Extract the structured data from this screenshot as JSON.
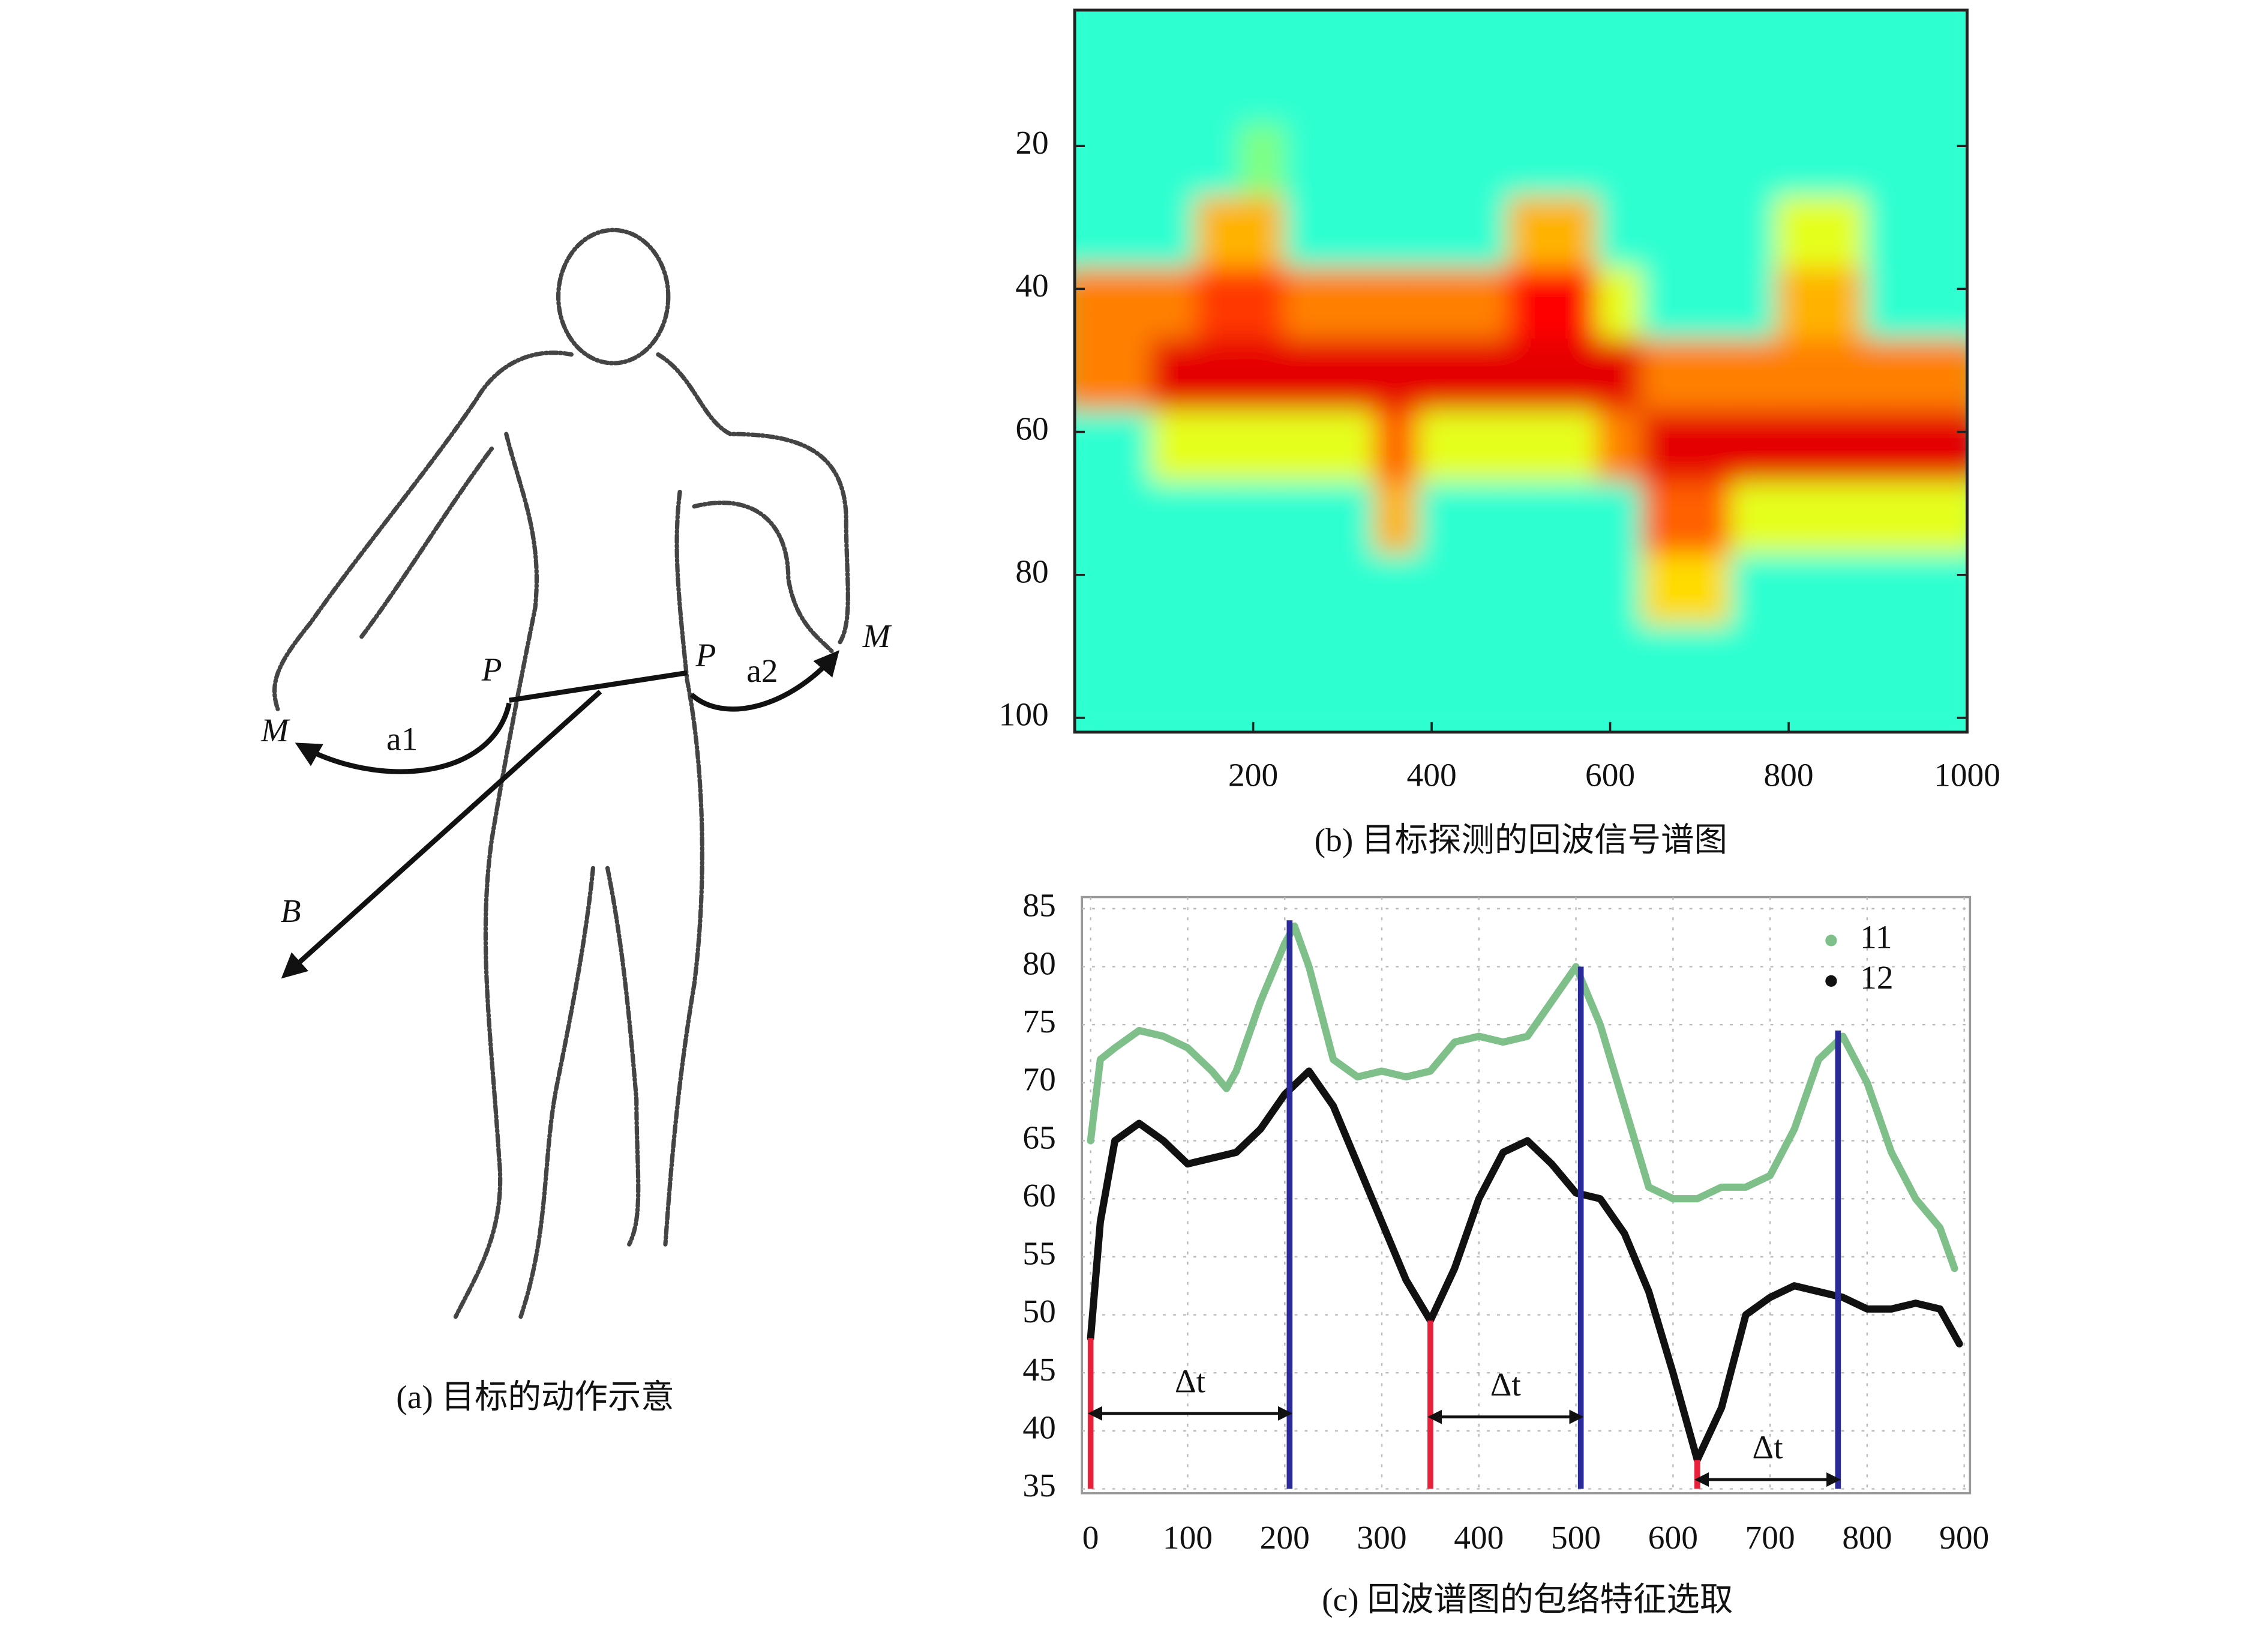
{
  "diagram": {
    "caption": "(a) 目标的动作示意",
    "labels": [
      "M",
      "a1",
      "P",
      "P",
      "a2",
      "M",
      "B"
    ]
  },
  "chart_data": [
    {
      "type": "heatmap",
      "caption": "(b) 目标探测的回波信号谱图",
      "colormap": "jet",
      "xlim": [
        0,
        1000
      ],
      "ylim": [
        102,
        1
      ],
      "xticks": [
        200,
        400,
        600,
        800,
        1000
      ],
      "yticks": [
        20,
        40,
        60,
        80,
        100
      ],
      "x": [
        25,
        75,
        125,
        175,
        225,
        275,
        325,
        375,
        425,
        475,
        525,
        575,
        625,
        675,
        725,
        775,
        825,
        875,
        925,
        975
      ],
      "y": [
        5,
        15,
        25,
        35,
        45,
        55,
        65,
        75,
        85,
        95
      ],
      "z": [
        [
          0.42,
          0.42,
          0.42,
          0.42,
          0.42,
          0.42,
          0.42,
          0.42,
          0.42,
          0.42,
          0.42,
          0.42,
          0.42,
          0.42,
          0.42,
          0.42,
          0.42,
          0.42,
          0.42,
          0.42
        ],
        [
          0.42,
          0.42,
          0.42,
          0.42,
          0.42,
          0.42,
          0.42,
          0.42,
          0.42,
          0.42,
          0.42,
          0.42,
          0.42,
          0.42,
          0.42,
          0.42,
          0.42,
          0.42,
          0.42,
          0.42
        ],
        [
          0.42,
          0.42,
          0.42,
          0.42,
          0.5,
          0.42,
          0.42,
          0.42,
          0.42,
          0.42,
          0.42,
          0.42,
          0.42,
          0.42,
          0.42,
          0.42,
          0.42,
          0.42,
          0.42,
          0.42
        ],
        [
          0.42,
          0.42,
          0.42,
          0.7,
          0.7,
          0.42,
          0.42,
          0.42,
          0.42,
          0.42,
          0.7,
          0.7,
          0.42,
          0.42,
          0.42,
          0.42,
          0.6,
          0.6,
          0.42,
          0.42
        ],
        [
          0.75,
          0.75,
          0.75,
          0.82,
          0.82,
          0.75,
          0.75,
          0.75,
          0.75,
          0.75,
          0.87,
          0.87,
          0.6,
          0.42,
          0.42,
          0.42,
          0.7,
          0.7,
          0.42,
          0.42
        ],
        [
          0.75,
          0.75,
          0.9,
          0.9,
          0.9,
          0.9,
          0.9,
          0.9,
          0.9,
          0.9,
          0.9,
          0.9,
          0.9,
          0.75,
          0.75,
          0.75,
          0.75,
          0.75,
          0.75,
          0.75
        ],
        [
          0.42,
          0.42,
          0.6,
          0.6,
          0.6,
          0.6,
          0.6,
          0.78,
          0.6,
          0.6,
          0.6,
          0.6,
          0.75,
          0.9,
          0.9,
          0.9,
          0.9,
          0.9,
          0.9,
          0.9
        ],
        [
          0.42,
          0.42,
          0.42,
          0.42,
          0.42,
          0.42,
          0.42,
          0.7,
          0.42,
          0.42,
          0.42,
          0.42,
          0.42,
          0.78,
          0.78,
          0.6,
          0.6,
          0.6,
          0.6,
          0.6
        ],
        [
          0.42,
          0.42,
          0.42,
          0.42,
          0.42,
          0.42,
          0.42,
          0.42,
          0.42,
          0.42,
          0.42,
          0.42,
          0.42,
          0.66,
          0.66,
          0.42,
          0.42,
          0.42,
          0.42,
          0.42
        ],
        [
          0.42,
          0.42,
          0.42,
          0.42,
          0.42,
          0.42,
          0.42,
          0.42,
          0.42,
          0.42,
          0.42,
          0.42,
          0.42,
          0.42,
          0.42,
          0.42,
          0.42,
          0.42,
          0.42,
          0.42
        ]
      ]
    },
    {
      "type": "line",
      "caption": "(c) 回波谱图的包络特征选取",
      "xlim": [
        0,
        900
      ],
      "ylim": [
        35,
        85
      ],
      "xticks": [
        0,
        100,
        200,
        300,
        400,
        500,
        600,
        700,
        800,
        900
      ],
      "yticks": [
        35,
        40,
        45,
        50,
        55,
        60,
        65,
        70,
        75,
        80,
        85
      ],
      "grid": true,
      "legend": "upper right",
      "series": [
        {
          "name": "11",
          "color": "#7fbf8a",
          "x": [
            0,
            10,
            25,
            50,
            75,
            100,
            125,
            140,
            150,
            175,
            200,
            210,
            225,
            250,
            275,
            300,
            325,
            350,
            375,
            400,
            425,
            450,
            475,
            500,
            525,
            550,
            575,
            600,
            625,
            650,
            675,
            700,
            725,
            750,
            775,
            800,
            825,
            850,
            875,
            890
          ],
          "values": [
            65,
            72,
            73,
            74.5,
            74,
            73,
            71,
            69.5,
            71,
            77,
            82,
            83.5,
            80,
            72,
            70.5,
            71,
            70.5,
            71,
            73.5,
            74,
            73.5,
            74,
            77,
            80,
            75,
            68,
            61,
            60,
            60,
            61,
            61,
            62,
            66,
            72,
            74,
            70,
            64,
            60,
            57.5,
            54
          ]
        },
        {
          "name": "12",
          "color": "#111111",
          "x": [
            0,
            10,
            25,
            50,
            75,
            100,
            125,
            150,
            175,
            200,
            225,
            250,
            275,
            300,
            325,
            350,
            375,
            400,
            425,
            450,
            475,
            500,
            525,
            550,
            575,
            600,
            625,
            650,
            675,
            700,
            725,
            750,
            775,
            800,
            825,
            850,
            875,
            895
          ],
          "values": [
            48,
            58,
            65,
            66.5,
            65,
            63,
            63.5,
            64,
            66,
            69,
            71,
            68,
            63,
            58,
            53,
            49.5,
            54,
            60,
            64,
            65,
            63,
            60.5,
            60,
            57,
            52,
            45,
            37.5,
            42,
            50,
            51.5,
            52.5,
            52,
            51.5,
            50.5,
            50.5,
            51,
            50.5,
            47.5
          ]
        }
      ],
      "vlines": [
        {
          "x": 0,
          "y": 48,
          "color": "#e8203a"
        },
        {
          "x": 350,
          "y": 49.5,
          "color": "#e8203a"
        },
        {
          "x": 625,
          "y": 37.5,
          "color": "#e8203a"
        },
        {
          "x": 205,
          "y": 84,
          "color": "#2a2a9a"
        },
        {
          "x": 505,
          "y": 80,
          "color": "#2a2a9a"
        },
        {
          "x": 770,
          "y": 74.5,
          "color": "#2a2a9a"
        }
      ],
      "intervals": [
        {
          "x": [
            0,
            205
          ],
          "y": 41.5,
          "label": "Δt"
        },
        {
          "x": [
            350,
            505
          ],
          "y": 41.2,
          "label": "Δt"
        },
        {
          "x": [
            625,
            770
          ],
          "y": 35.8,
          "label": "Δt"
        }
      ]
    }
  ]
}
